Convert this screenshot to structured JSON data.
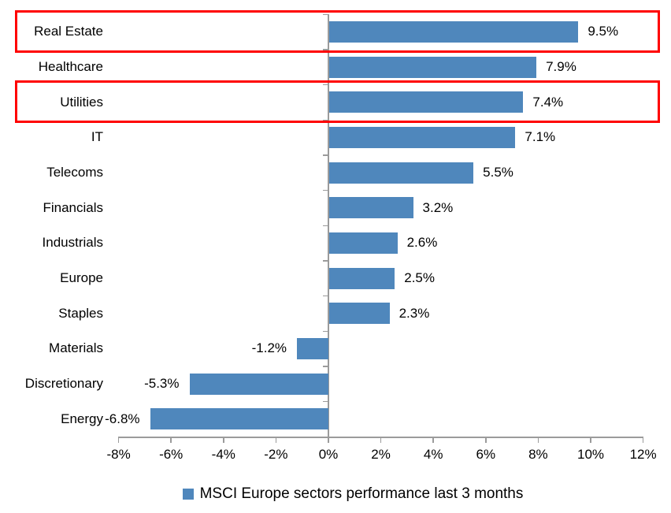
{
  "chart_data": {
    "type": "bar",
    "orientation": "horizontal",
    "categories": [
      "Real Estate",
      "Healthcare",
      "Utilities",
      "IT",
      "Telecoms",
      "Financials",
      "Industrials",
      "Europe",
      "Staples",
      "Materials",
      "Discretionary",
      "Energy"
    ],
    "values": [
      9.5,
      7.9,
      7.4,
      7.1,
      5.5,
      3.2,
      2.6,
      2.5,
      2.3,
      -1.2,
      -5.3,
      -6.8
    ],
    "value_labels": [
      "9.5%",
      "7.9%",
      "7.4%",
      "7.1%",
      "5.5%",
      "3.2%",
      "2.6%",
      "2.5%",
      "2.3%",
      "-1.2%",
      "-5.3%",
      "-6.8%"
    ],
    "highlighted_categories": [
      "Real Estate",
      "Utilities"
    ],
    "x_axis": {
      "min": -8,
      "max": 12,
      "step": 2,
      "tick_labels": [
        "-8%",
        "-6%",
        "-4%",
        "-2%",
        "0%",
        "2%",
        "4%",
        "6%",
        "8%",
        "10%",
        "12%"
      ]
    },
    "grid": false,
    "legend_position": "bottom",
    "legend": {
      "label": "MSCI Europe sectors performance last 3 months",
      "swatch_color": "#4F87BC"
    },
    "colors": {
      "bar": "#4F87BC",
      "highlight_box": "#FF0000",
      "axis": "#9B9B9B",
      "text": "#000000"
    }
  }
}
